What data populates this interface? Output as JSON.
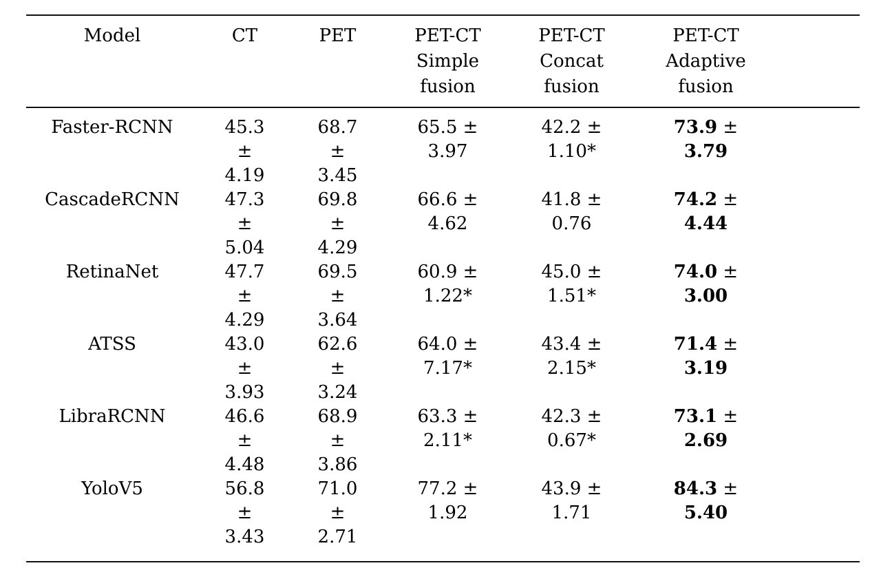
{
  "page": {
    "background": "#ffffff",
    "text_color": "#000000",
    "rule_color": "#111111"
  },
  "table": {
    "columns": [
      {
        "id": "model",
        "label": "Model",
        "label_lines": [
          "Model"
        ]
      },
      {
        "id": "ct",
        "label": "CT",
        "label_lines": [
          "CT"
        ]
      },
      {
        "id": "pet",
        "label": "PET",
        "label_lines": [
          "PET"
        ]
      },
      {
        "id": "simple",
        "label": "PET-CT Simple fusion",
        "label_lines": [
          "PET-CT",
          "Simple",
          "fusion"
        ]
      },
      {
        "id": "concat",
        "label": "PET-CT Concat fusion",
        "label_lines": [
          "PET-CT",
          "Concat",
          "fusion"
        ]
      },
      {
        "id": "adaptive",
        "label": "PET-CT Adaptive fusion",
        "label_lines": [
          "PET-CT",
          "Adaptive",
          "fusion"
        ]
      }
    ],
    "rows": [
      {
        "model": "Faster-RCNN",
        "cells": [
          {
            "col": "ct",
            "text": "45.3 ± 4.19",
            "lines": [
              "45.3",
              "±",
              "4.19"
            ],
            "bold": false
          },
          {
            "col": "pet",
            "text": "68.7 ± 3.45",
            "lines": [
              "68.7",
              "±",
              "3.45"
            ],
            "bold": false
          },
          {
            "col": "simple",
            "text": "65.5 ± 3.97",
            "lines": [
              "65.5 ±",
              "3.97"
            ],
            "bold": false
          },
          {
            "col": "concat",
            "text": "42.2 ± 1.10*",
            "lines": [
              "42.2 ±",
              "1.10*"
            ],
            "bold": false
          },
          {
            "col": "adaptive",
            "text": "73.9 ± 3.79",
            "lines": [
              "73.9 ±",
              "3.79"
            ],
            "bold": true
          }
        ]
      },
      {
        "model": "CascadeRCNN",
        "cells": [
          {
            "col": "ct",
            "text": "47.3 ± 5.04",
            "lines": [
              "47.3",
              "±",
              "5.04"
            ],
            "bold": false
          },
          {
            "col": "pet",
            "text": "69.8 ± 4.29",
            "lines": [
              "69.8",
              "±",
              "4.29"
            ],
            "bold": false
          },
          {
            "col": "simple",
            "text": "66.6 ± 4.62",
            "lines": [
              "66.6 ±",
              "4.62"
            ],
            "bold": false
          },
          {
            "col": "concat",
            "text": "41.8 ± 0.76",
            "lines": [
              "41.8 ±",
              "0.76"
            ],
            "bold": false
          },
          {
            "col": "adaptive",
            "text": "74.2 ± 4.44",
            "lines": [
              "74.2 ±",
              "4.44"
            ],
            "bold": true
          }
        ]
      },
      {
        "model": "RetinaNet",
        "cells": [
          {
            "col": "ct",
            "text": "47.7 ± 4.29",
            "lines": [
              "47.7",
              "±",
              "4.29"
            ],
            "bold": false
          },
          {
            "col": "pet",
            "text": "69.5 ± 3.64",
            "lines": [
              "69.5",
              "±",
              "3.64"
            ],
            "bold": false
          },
          {
            "col": "simple",
            "text": "60.9 ± 1.22*",
            "lines": [
              "60.9 ±",
              "1.22*"
            ],
            "bold": false
          },
          {
            "col": "concat",
            "text": "45.0 ± 1.51*",
            "lines": [
              "45.0 ±",
              "1.51*"
            ],
            "bold": false
          },
          {
            "col": "adaptive",
            "text": "74.0 ± 3.00",
            "lines": [
              "74.0 ±",
              "3.00"
            ],
            "bold": true
          }
        ]
      },
      {
        "model": "ATSS",
        "cells": [
          {
            "col": "ct",
            "text": "43.0 ± 3.93",
            "lines": [
              "43.0",
              "±",
              "3.93"
            ],
            "bold": false
          },
          {
            "col": "pet",
            "text": "62.6 ± 3.24",
            "lines": [
              "62.6",
              "±",
              "3.24"
            ],
            "bold": false
          },
          {
            "col": "simple",
            "text": "64.0 ± 7.17*",
            "lines": [
              "64.0 ±",
              "7.17*"
            ],
            "bold": false
          },
          {
            "col": "concat",
            "text": "43.4 ± 2.15*",
            "lines": [
              "43.4 ±",
              "2.15*"
            ],
            "bold": false
          },
          {
            "col": "adaptive",
            "text": "71.4 ± 3.19",
            "lines": [
              "71.4 ±",
              "3.19"
            ],
            "bold": true
          }
        ]
      },
      {
        "model": "LibraRCNN",
        "cells": [
          {
            "col": "ct",
            "text": "46.6 ± 4.48",
            "lines": [
              "46.6",
              "±",
              "4.48"
            ],
            "bold": false
          },
          {
            "col": "pet",
            "text": "68.9 ± 3.86",
            "lines": [
              "68.9",
              "±",
              "3.86"
            ],
            "bold": false
          },
          {
            "col": "simple",
            "text": "63.3 ± 2.11*",
            "lines": [
              "63.3 ±",
              "2.11*"
            ],
            "bold": false
          },
          {
            "col": "concat",
            "text": "42.3 ± 0.67*",
            "lines": [
              "42.3 ±",
              "0.67*"
            ],
            "bold": false
          },
          {
            "col": "adaptive",
            "text": "73.1 ± 2.69",
            "lines": [
              "73.1 ±",
              "2.69"
            ],
            "bold": true
          }
        ]
      },
      {
        "model": "YoloV5",
        "cells": [
          {
            "col": "ct",
            "text": "56.8 ± 3.43",
            "lines": [
              "56.8",
              "±",
              "3.43"
            ],
            "bold": false
          },
          {
            "col": "pet",
            "text": "71.0 ± 2.71",
            "lines": [
              "71.0",
              "±",
              "2.71"
            ],
            "bold": false
          },
          {
            "col": "simple",
            "text": "77.2 ± 1.92",
            "lines": [
              "77.2 ±",
              "1.92"
            ],
            "bold": false
          },
          {
            "col": "concat",
            "text": "43.9 ± 1.71",
            "lines": [
              "43.9 ±",
              "1.71"
            ],
            "bold": false
          },
          {
            "col": "adaptive",
            "text": "84.3 ± 5.40",
            "lines": [
              "84.3 ±",
              "5.40"
            ],
            "bold": true
          }
        ]
      }
    ]
  }
}
